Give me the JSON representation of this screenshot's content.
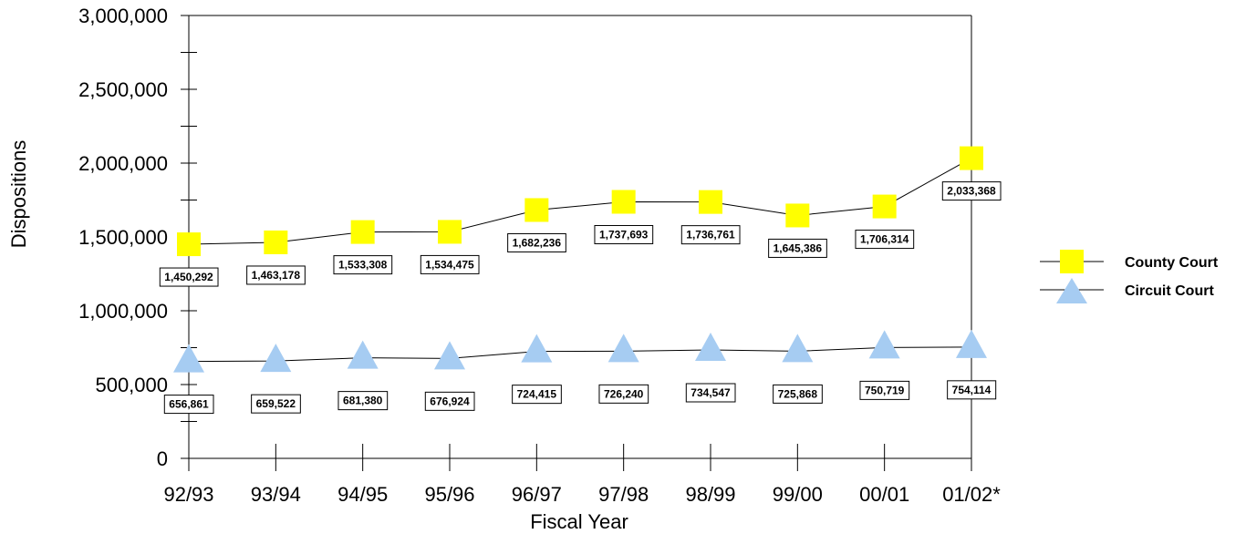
{
  "chart_data": {
    "type": "line",
    "title": "",
    "xlabel": "Fiscal Year",
    "ylabel": "Dispositions",
    "categories": [
      "92/93",
      "93/94",
      "94/95",
      "95/96",
      "96/97",
      "97/98",
      "98/99",
      "99/00",
      "00/01",
      "01/02*"
    ],
    "ylim": [
      0,
      3000000
    ],
    "yticks": [
      0,
      500000,
      1000000,
      1500000,
      2000000,
      2500000,
      3000000
    ],
    "ytick_labels": [
      "0",
      "500,000",
      "1,000,000",
      "1,500,000",
      "2,000,000",
      "2,500,000",
      "3,000,000"
    ],
    "grid": false,
    "legend_position": "right",
    "series": [
      {
        "name": "County Court",
        "marker": "square",
        "color": "#ffff00",
        "values": [
          1450292,
          1463178,
          1533308,
          1534475,
          1682236,
          1737693,
          1736761,
          1645386,
          1706314,
          2033368
        ],
        "labels": [
          "1,450,292",
          "1,463,178",
          "1,533,308",
          "1,534,475",
          "1,682,236",
          "1,737,693",
          "1,736,761",
          "1,645,386",
          "1,706,314",
          "2,033,368"
        ]
      },
      {
        "name": "Circuit Court",
        "marker": "triangle",
        "color": "#a6ccf2",
        "values": [
          656861,
          659522,
          681380,
          676924,
          724415,
          726240,
          734547,
          725868,
          750719,
          754114
        ],
        "labels": [
          "656,861",
          "659,522",
          "681,380",
          "676,924",
          "724,415",
          "726,240",
          "734,547",
          "725,868",
          "750,719",
          "754,114"
        ]
      }
    ]
  }
}
